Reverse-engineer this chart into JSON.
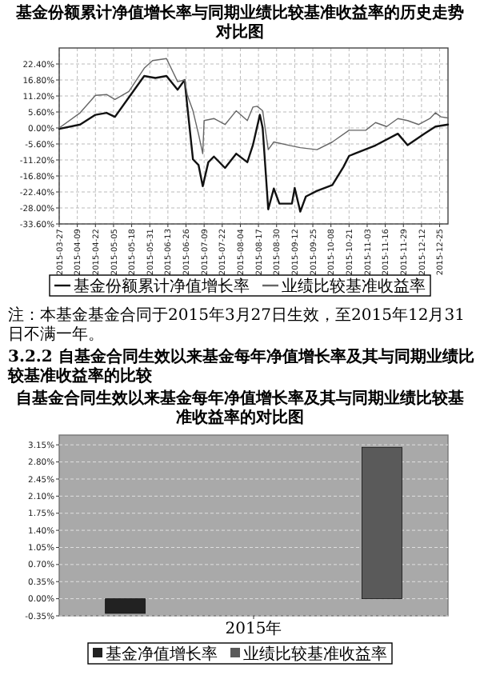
{
  "chart_data": [
    {
      "type": "line",
      "title": "基金份额累计净值增长率与同期业绩比较基准收益率的历史走势对比图",
      "annotations": [
        "注：本基金基金合同于2015年3月27日生效，至2015年12月31日不满一年。"
      ],
      "grid": true,
      "legend": "bottom",
      "xlim": [
        "2015-03-27",
        "2015-12-31"
      ],
      "xticks": [
        "2015-03-27",
        "2015-04-09",
        "2015-04-22",
        "2015-05-05",
        "2015-05-18",
        "2015-05-31",
        "2015-06-13",
        "2015-06-26",
        "2015-07-09",
        "2015-07-22",
        "2015-08-04",
        "2015-08-17",
        "2015-08-30",
        "2015-09-12",
        "2015-09-25",
        "2015-10-08",
        "2015-10-21",
        "2015-11-03",
        "2015-11-16",
        "2015-11-29",
        "2015-12-12",
        "2015-12-25"
      ],
      "ylim": [
        -33.6,
        28
      ],
      "yticks": [
        {
          "value": 22.4,
          "label": "22.40%"
        },
        {
          "value": 16.8,
          "label": "16.80%"
        },
        {
          "value": 11.2,
          "label": "11.20%"
        },
        {
          "value": 5.6,
          "label": "5.60%"
        },
        {
          "value": 0,
          "label": "0.00%"
        },
        {
          "value": -5.6,
          "label": "-5.60%"
        },
        {
          "value": -11.2,
          "label": "-11.20%"
        },
        {
          "value": -16.8,
          "label": "-16.80%"
        },
        {
          "value": -22.4,
          "label": "-22.40%"
        },
        {
          "value": -28,
          "label": "-28.00%"
        },
        {
          "value": -33.6,
          "label": "-33.60%"
        }
      ],
      "series": [
        {
          "name": "基金份额累计净值增长率",
          "color": "#111111",
          "x": [
            "2015-03-27",
            "2015-04-11",
            "2015-04-22",
            "2015-04-30",
            "2015-05-06",
            "2015-05-16",
            "2015-05-27",
            "2015-06-04",
            "2015-06-12",
            "2015-06-20",
            "2015-06-25",
            "2015-06-27",
            "2015-07-01",
            "2015-07-05",
            "2015-07-08",
            "2015-07-12",
            "2015-07-16",
            "2015-07-24",
            "2015-08-01",
            "2015-08-09",
            "2015-08-13",
            "2015-08-18",
            "2015-08-20",
            "2015-08-24",
            "2015-08-28",
            "2015-09-01",
            "2015-09-10",
            "2015-09-12",
            "2015-09-16",
            "2015-09-20",
            "2015-09-28",
            "2015-10-09",
            "2015-10-17",
            "2015-10-21",
            "2015-10-25",
            "2015-11-09",
            "2015-11-25",
            "2015-12-02",
            "2015-12-14",
            "2015-12-22",
            "2015-12-31"
          ],
          "values": [
            -0.3,
            1.2,
            4.6,
            5.3,
            3.9,
            10.7,
            18.2,
            17.5,
            18.2,
            13.4,
            16.8,
            7.3,
            -11,
            -13,
            -20.4,
            -12,
            -10,
            -14,
            -9,
            -12,
            -6,
            4.6,
            0,
            -28.5,
            -21.2,
            -26.5,
            -26.5,
            -21,
            -29.3,
            -24,
            -22,
            -20,
            -13.6,
            -9.8,
            -9,
            -6.1,
            -2,
            -6,
            -2,
            0.5,
            1.2
          ]
        },
        {
          "name": "业绩比较基准收益率",
          "color": "#666666",
          "x": [
            "2015-03-27",
            "2015-04-11",
            "2015-04-22",
            "2015-04-30",
            "2015-05-06",
            "2015-05-16",
            "2015-05-27",
            "2015-06-02",
            "2015-06-12",
            "2015-06-20",
            "2015-06-25",
            "2015-06-27",
            "2015-07-01",
            "2015-07-05",
            "2015-07-08",
            "2015-07-09",
            "2015-07-16",
            "2015-07-24",
            "2015-08-01",
            "2015-08-09",
            "2015-08-13",
            "2015-08-16",
            "2015-08-20",
            "2015-08-24",
            "2015-08-28",
            "2015-09-09",
            "2015-09-16",
            "2015-09-28",
            "2015-10-09",
            "2015-10-21",
            "2015-11-02",
            "2015-11-09",
            "2015-11-17",
            "2015-11-25",
            "2015-12-02",
            "2015-12-10",
            "2015-12-18",
            "2015-12-22",
            "2015-12-26",
            "2015-12-31"
          ],
          "values": [
            0,
            5.3,
            11.4,
            11.7,
            10.0,
            12.8,
            20.9,
            23.6,
            24.3,
            16.2,
            16.8,
            11.4,
            6.0,
            -2.2,
            -9.0,
            2.6,
            3.3,
            1.2,
            6.0,
            2.6,
            7.3,
            7.6,
            6.0,
            -7.6,
            -4.9,
            -6.2,
            -6.9,
            -7.6,
            -4.9,
            -0.8,
            -0.8,
            1.9,
            0.5,
            3.3,
            2.6,
            1.2,
            3.3,
            5.3,
            3.9,
            3.5
          ]
        }
      ]
    },
    {
      "type": "bar",
      "title": "自基金合同生效以来基金每年净值增长率及其与同期业绩比较基准收益率的对比图",
      "annotations": [
        "3.2.2 自基金合同生效以来基金每年净值增长率及其与同期业绩比较基准收益率的比较"
      ],
      "grid": "y",
      "legend": "bottom",
      "categories": [
        "2015年"
      ],
      "ylim": [
        -0.35,
        3.35
      ],
      "yticks": [
        {
          "value": -0.35,
          "label": "-0.35%"
        },
        {
          "value": 0,
          "label": "0.00%"
        },
        {
          "value": 0.35,
          "label": "0.35%"
        },
        {
          "value": 0.7,
          "label": "0.70%"
        },
        {
          "value": 1.05,
          "label": "1.05%"
        },
        {
          "value": 1.4,
          "label": "1.40%"
        },
        {
          "value": 1.75,
          "label": "1.75%"
        },
        {
          "value": 2.1,
          "label": "2.10%"
        },
        {
          "value": 2.45,
          "label": "2.45%"
        },
        {
          "value": 2.8,
          "label": "2.80%"
        },
        {
          "value": 3.15,
          "label": "3.15%"
        }
      ],
      "series": [
        {
          "name": "基金净值增长率",
          "color": "#222222",
          "values": [
            -0.3
          ]
        },
        {
          "name": "业绩比较基准收益率",
          "color": "#5a5a5a",
          "values": [
            3.1
          ]
        }
      ]
    }
  ]
}
